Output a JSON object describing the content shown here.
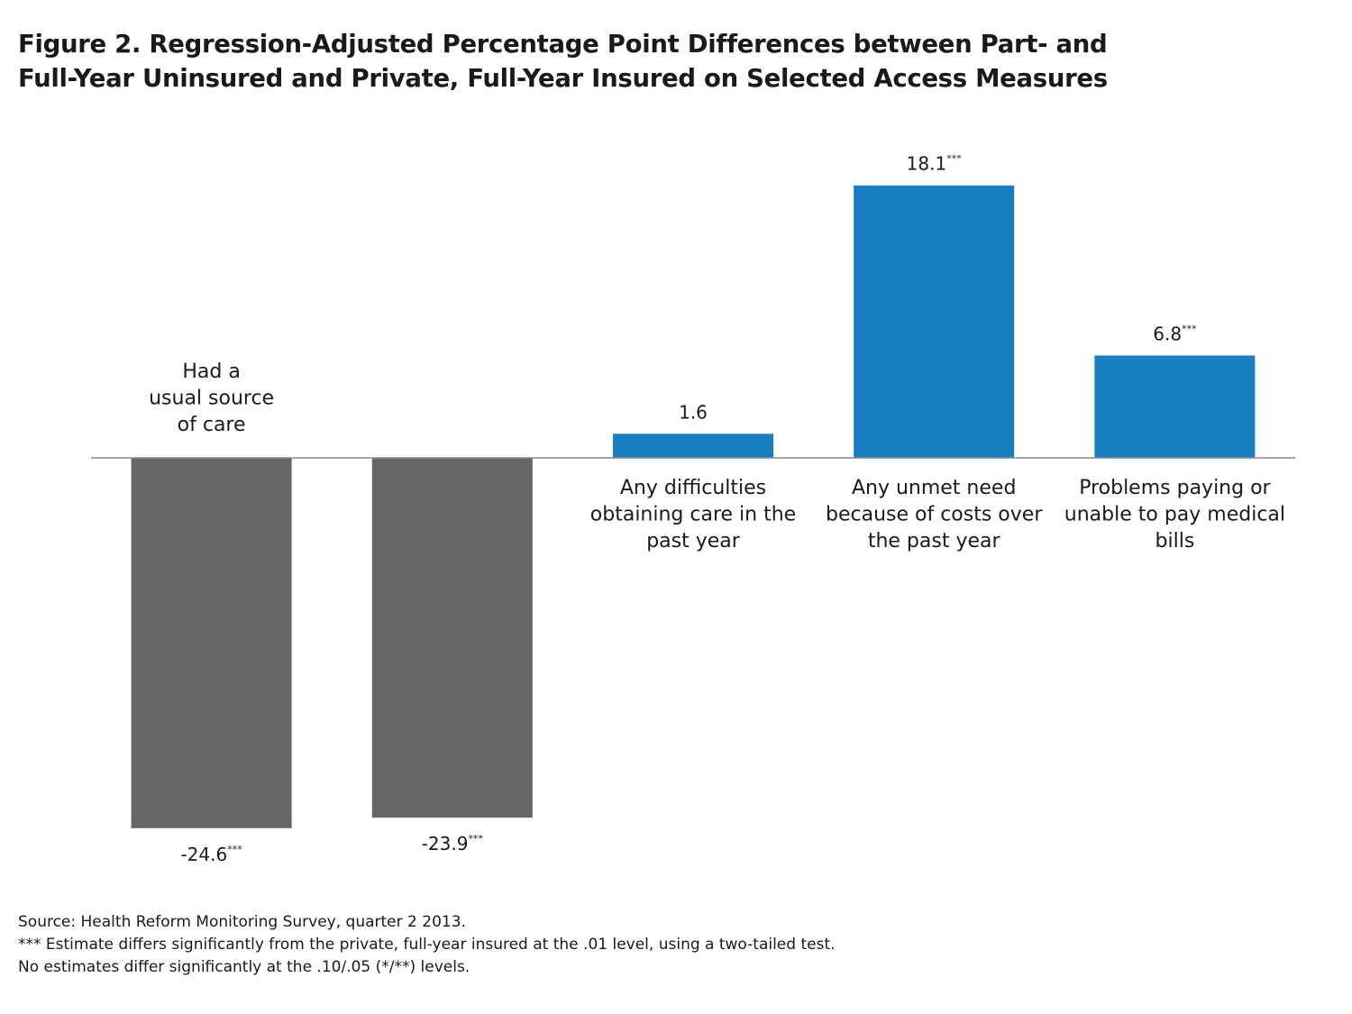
{
  "title_lines": [
    "Figure 2. Regression-Adjusted Percentage Point Differences between Part- and",
    "Full-Year Uninsured and Private, Full-Year Insured on Selected Access Measures"
  ],
  "colors": {
    "negative_bar": "#656668",
    "positive_bar": "#177ec2",
    "axis_line": "#8c8c8c",
    "text": "#1a1a1a"
  },
  "chart_data": {
    "type": "bar",
    "categories": [
      [
        "Had a",
        "usual source",
        "of care"
      ],
      [],
      [
        "Any difficulties",
        "obtaining care in the",
        "past year"
      ],
      [
        "Any unmet need",
        "because of costs over",
        "the past year"
      ],
      [
        "Problems paying or",
        "unable to pay medical",
        "bills"
      ]
    ],
    "values": [
      -24.6,
      -23.9,
      1.6,
      18.1,
      6.8
    ],
    "value_labels": [
      "-24.6",
      "-23.9",
      "1.6",
      "18.1",
      "6.8"
    ],
    "significance": [
      "***",
      "***",
      "",
      "***",
      "***"
    ],
    "title": "",
    "xlabel": "",
    "ylabel": "",
    "ylim": [
      -24.6,
      18.1
    ],
    "grid": false,
    "legend": "none"
  },
  "footnotes": [
    "Source: Health Reform Monitoring Survey, quarter 2 2013.",
    "*** Estimate differs significantly from the private, full-year insured at the .01 level, using a two-tailed test.",
    "No estimates differ significantly at the .10/.05 (*/**) levels."
  ]
}
